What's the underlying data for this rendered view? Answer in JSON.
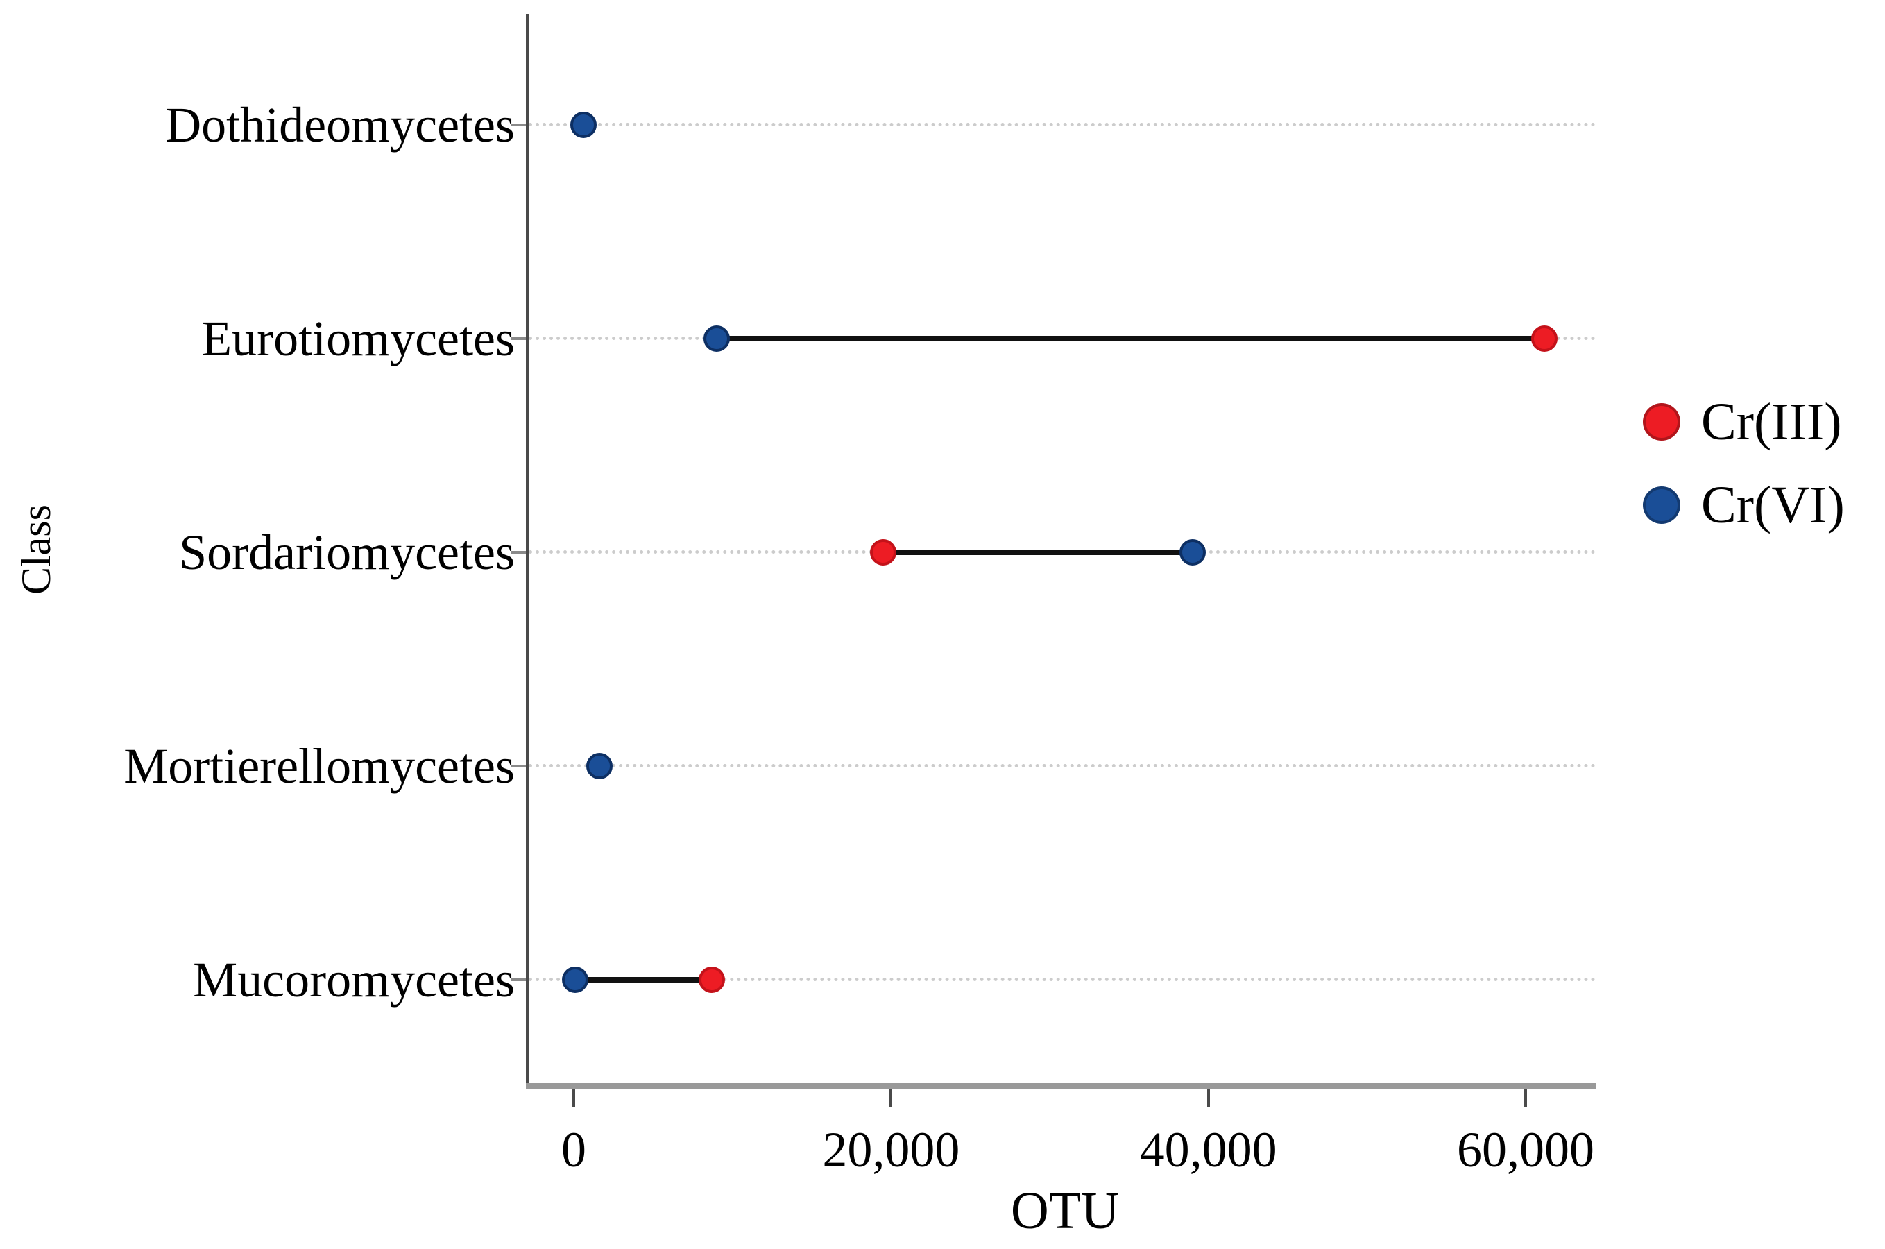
{
  "figure": {
    "background": "#ffffff"
  },
  "chart_data": {
    "type": "scatter",
    "subtype": "dumbbell-dot-plot",
    "title": "",
    "xlabel": "OTU",
    "ylabel": "Class",
    "categories": [
      "Dothideomycetes",
      "Eurotiomycetes",
      "Sordariomycetes",
      "Mortierellomycetes",
      "Mucoromycetes"
    ],
    "series": [
      {
        "name": "Cr(III)",
        "color": "#ED1C24",
        "values": [
          null,
          61200,
          19500,
          null,
          8700
        ]
      },
      {
        "name": "Cr(VI)",
        "color": "#1A4E97",
        "values": [
          600,
          9000,
          39000,
          1600,
          100
        ]
      }
    ],
    "connectors": [
      {
        "category": "Eurotiomycetes",
        "from": 9000,
        "to": 61200
      },
      {
        "category": "Sordariomycetes",
        "from": 19500,
        "to": 39000
      },
      {
        "category": "Mucoromycetes",
        "from": 100,
        "to": 8700
      }
    ],
    "connector_color": "#111111",
    "xticks": [
      {
        "value": 0,
        "label": "0"
      },
      {
        "value": 20000,
        "label": "20,000"
      },
      {
        "value": 40000,
        "label": "40,000"
      },
      {
        "value": 60000,
        "label": "60,000"
      }
    ],
    "xlim": [
      -2900,
      64400
    ],
    "grid": "horizontal-dotted",
    "grid_color": "#cccccc",
    "axis_color_left": "#4a4a4a",
    "axis_color_bottom": "#999999",
    "legend_position": "right-middle",
    "legend": [
      {
        "label": "Cr(III)",
        "color": "#ED1C24"
      },
      {
        "label": "Cr(VI)",
        "color": "#1A4E97"
      }
    ]
  }
}
